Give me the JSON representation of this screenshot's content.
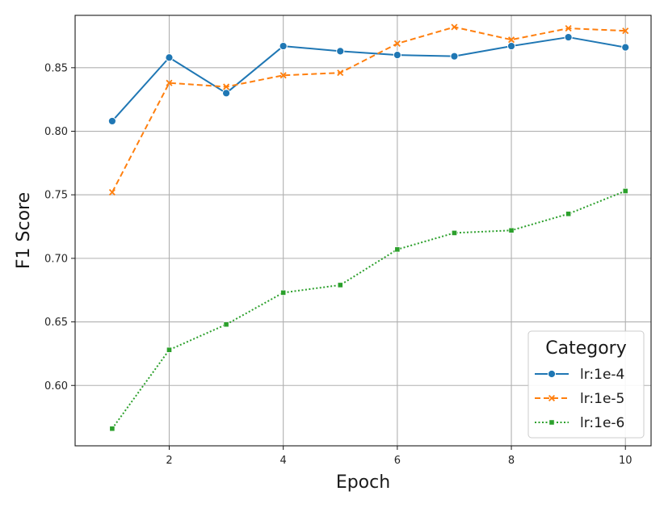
{
  "chart_data": {
    "type": "line",
    "title": "",
    "xlabel": "Epoch",
    "ylabel": "F1 Score",
    "x": [
      1,
      2,
      3,
      4,
      5,
      6,
      7,
      8,
      9,
      10
    ],
    "xlim": [
      0.35,
      10.45
    ],
    "ylim": [
      0.5525,
      0.8912
    ],
    "xticks": [
      2,
      4,
      6,
      8,
      10
    ],
    "xtick_labels": [
      "2",
      "4",
      "6",
      "8",
      "10"
    ],
    "yticks": [
      0.6,
      0.65,
      0.7,
      0.75,
      0.8,
      0.85
    ],
    "ytick_labels": [
      "0.60",
      "0.65",
      "0.70",
      "0.75",
      "0.80",
      "0.85"
    ],
    "grid": true,
    "legend": {
      "title": "Category",
      "placement": "lower-right"
    },
    "series": [
      {
        "name": "lr:1e-4",
        "color": "#1f77b4",
        "line_style": "solid",
        "marker": "circle",
        "values": [
          0.808,
          0.858,
          0.83,
          0.867,
          0.863,
          0.86,
          0.859,
          0.867,
          0.874,
          0.866
        ]
      },
      {
        "name": "lr:1e-5",
        "color": "#ff7f0e",
        "line_style": "dashed",
        "marker": "x",
        "values": [
          0.752,
          0.838,
          0.835,
          0.844,
          0.846,
          0.869,
          0.882,
          0.872,
          0.881,
          0.879
        ]
      },
      {
        "name": "lr:1e-6",
        "color": "#2ca02c",
        "line_style": "dotted",
        "marker": "square",
        "values": [
          0.566,
          0.628,
          0.648,
          0.673,
          0.679,
          0.707,
          0.72,
          0.722,
          0.735,
          0.753
        ]
      }
    ]
  }
}
